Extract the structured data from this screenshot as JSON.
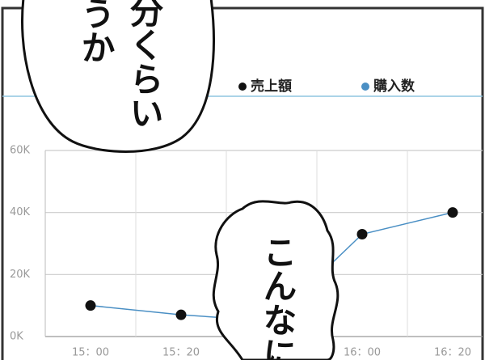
{
  "chart_data": {
    "type": "line",
    "categories": [
      "15：00",
      "15：20",
      null,
      "16：00",
      "16：20"
    ],
    "series": [
      {
        "color": "#111111",
        "line_color": "#4a8fc4",
        "values": [
          10000,
          7000,
          5000,
          33000,
          40000
        ]
      }
    ],
    "legend": [
      {
        "name": "売上額",
        "color": "#111111"
      },
      {
        "name": "購入数",
        "color": "#4a8fc4"
      }
    ],
    "ylim": [
      0,
      60000
    ],
    "yticks": [
      {
        "value": 0,
        "label": "0K"
      },
      {
        "value": 20000,
        "label": "20K"
      },
      {
        "value": 40000,
        "label": "40K"
      },
      {
        "value": 60000,
        "label": "60K"
      }
    ],
    "grid": true
  },
  "bubbles": [
    {
      "lines": [
        "分くらい",
        "うか"
      ]
    },
    {
      "lines": [
        "こんなに"
      ]
    }
  ]
}
